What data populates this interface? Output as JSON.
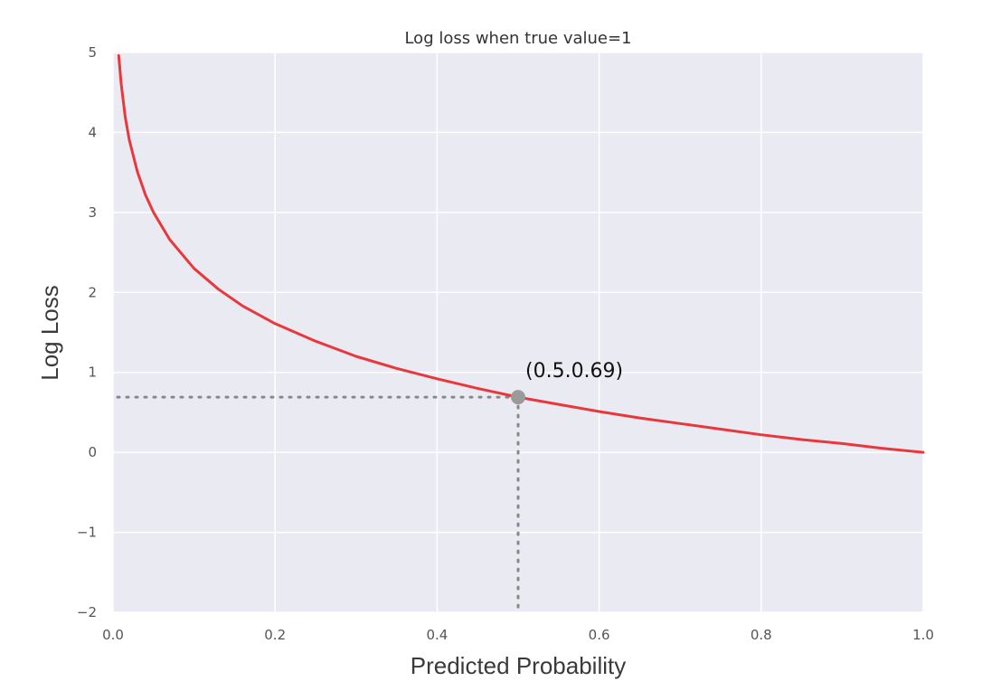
{
  "chart_data": {
    "type": "line",
    "title": "Log loss when true value=1",
    "xlabel": "Predicted Probability",
    "ylabel": "Log Loss",
    "xlim": [
      0.0,
      1.0
    ],
    "ylim": [
      -2,
      5
    ],
    "x_ticks": [
      "0.0",
      "0.2",
      "0.4",
      "0.6",
      "0.8",
      "1.0"
    ],
    "y_ticks": [
      "5",
      "4",
      "3",
      "2",
      "1",
      "0",
      "−1",
      "−2"
    ],
    "grid": true,
    "series": [
      {
        "color": "#e8383d",
        "x": [
          0.007,
          0.01,
          0.015,
          0.02,
          0.03,
          0.04,
          0.05,
          0.07,
          0.1,
          0.13,
          0.16,
          0.2,
          0.25,
          0.3,
          0.35,
          0.4,
          0.45,
          0.5,
          0.55,
          0.6,
          0.65,
          0.7,
          0.75,
          0.8,
          0.85,
          0.9,
          0.95,
          1.0
        ],
        "y": [
          4.96,
          4.61,
          4.2,
          3.91,
          3.51,
          3.22,
          3.0,
          2.66,
          2.3,
          2.04,
          1.83,
          1.61,
          1.39,
          1.2,
          1.05,
          0.92,
          0.8,
          0.69,
          0.6,
          0.51,
          0.43,
          0.36,
          0.29,
          0.22,
          0.16,
          0.11,
          0.05,
          0.0
        ]
      }
    ],
    "highlight_point": {
      "x": 0.5,
      "y": 0.69,
      "label": "(0.5.0.69)"
    },
    "colors": {
      "plot_background": "#eaeaf2",
      "grid": "#ffffff",
      "marker": "#9a9a9a",
      "guide": "#888888"
    }
  }
}
